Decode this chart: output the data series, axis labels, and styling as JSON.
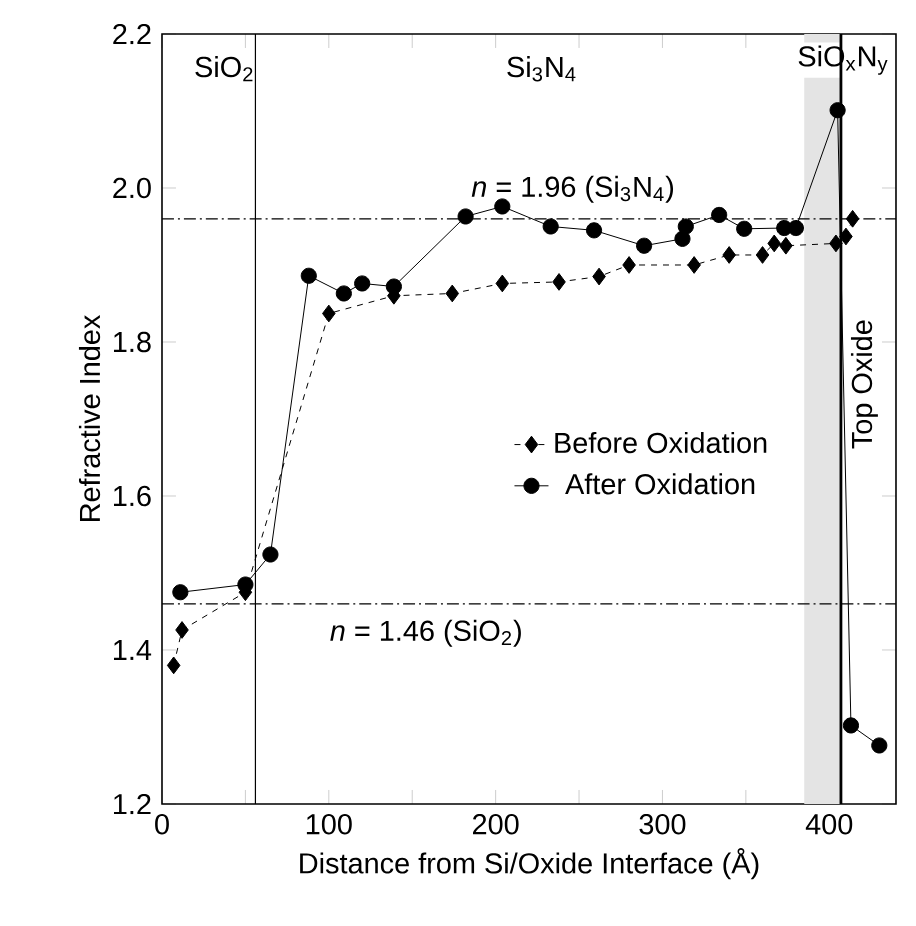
{
  "chart_data": {
    "type": "line",
    "xlabel": "Distance from Si/Oxide Interface  (Å)",
    "ylabel": "Refractive Index",
    "xlim": [
      0,
      440
    ],
    "ylim": [
      1.2,
      2.2
    ],
    "xticks": [
      0,
      {
        "value": 50,
        "label": null
      },
      100,
      {
        "value": 150,
        "label": null
      },
      200,
      {
        "value": 250,
        "label": null
      },
      300,
      {
        "value": 350,
        "label": null
      },
      400
    ],
    "yticks": [
      1.2,
      1.4,
      1.6,
      1.8,
      {
        "value": 2.0,
        "label": "2.0"
      },
      2.2
    ],
    "grid": false,
    "legend": "right",
    "series": [
      {
        "name": "Before Oxidation",
        "color": "#000000",
        "marker": "diamond",
        "line_style": "dashed",
        "x": [
          7,
          12,
          50,
          100,
          139,
          174,
          204,
          238,
          262,
          280,
          319,
          340,
          360,
          367,
          374,
          404,
          410,
          414
        ],
        "values": [
          1.38,
          1.426,
          1.475,
          1.837,
          1.86,
          1.863,
          1.876,
          1.878,
          1.885,
          1.9,
          1.9,
          1.913,
          1.913,
          1.928,
          1.925,
          1.928,
          1.937,
          1.96
        ]
      },
      {
        "name": "After Oxidation",
        "color": "#000000",
        "marker": "circle",
        "line_style": "solid",
        "x": [
          11,
          50,
          65,
          88,
          109,
          120,
          139,
          182,
          204,
          233,
          259,
          289,
          312,
          314,
          334,
          349,
          373,
          380,
          405,
          413,
          430
        ],
        "values": [
          1.475,
          1.485,
          1.524,
          1.886,
          1.863,
          1.876,
          1.872,
          1.963,
          1.976,
          1.95,
          1.945,
          1.925,
          1.934,
          1.95,
          1.965,
          1.947,
          1.948,
          1.948,
          2.101,
          1.302,
          1.276
        ]
      }
    ],
    "ref_lines": [
      {
        "axis": "y",
        "value": 1.96,
        "label": "*n* = 1.96 (Si$_{3}$N$_{4}$)",
        "line_style": "dashed",
        "color": "#000000"
      },
      {
        "axis": "y",
        "value": 1.46,
        "label": "*n* = 1.46  (SiO$_{2}$)",
        "line_style": "dashed",
        "color": "#000000"
      },
      {
        "axis": "x",
        "value": 56,
        "label": null,
        "line_style": "solid",
        "color": "#000000"
      },
      {
        "axis": "x",
        "value": 407,
        "label": "Top Oxide",
        "line_style": "solid",
        "color": "#000000"
      }
    ],
    "bands": [
      {
        "axis": "x",
        "from": 385,
        "to": 407,
        "label": "SiO$_{x}$N$_{y}$",
        "color": "#e4e4e4"
      }
    ],
    "annotations": [
      "SiO$_{2}$",
      "Si$_{3}$N$_{4}$"
    ]
  }
}
